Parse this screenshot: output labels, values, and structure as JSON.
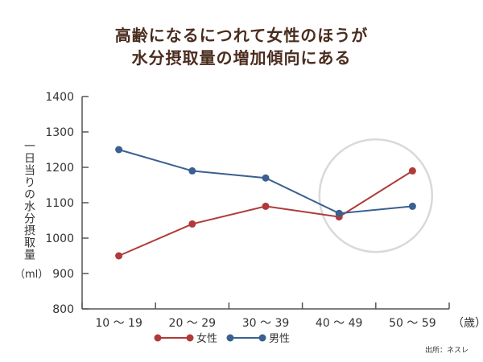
{
  "title": [
    "高齢になるにつれて女性のほうが",
    "水分摂取量の増加傾向にある"
  ],
  "ylabel": "一日当りの水分摂取量",
  "ylabel_unit": "（ml）",
  "source": "出所：ネスレ",
  "colors": {
    "female": "#b03a3a",
    "male": "#3a6090",
    "axis": "#555555",
    "circle": "#d9d9d9"
  },
  "chart_data": {
    "type": "line",
    "categories": [
      "10 ～ 19",
      "20 ～ 29",
      "30 ～ 39",
      "40 ～ 49",
      "50 ～ 59"
    ],
    "x_unit": "（歳）",
    "ylim": [
      800,
      1400
    ],
    "yticks": [
      800,
      900,
      1000,
      1100,
      1200,
      1300,
      1400
    ],
    "grid": false,
    "legend_position": "bottom-center",
    "highlight_category": "40 ～ 49 to 50 ～ 59",
    "series": [
      {
        "name": "女性",
        "color": "#b03a3a",
        "values": [
          950,
          1040,
          1090,
          1060,
          1190
        ]
      },
      {
        "name": "男性",
        "color": "#3a6090",
        "values": [
          1250,
          1190,
          1170,
          1070,
          1090
        ]
      }
    ]
  }
}
